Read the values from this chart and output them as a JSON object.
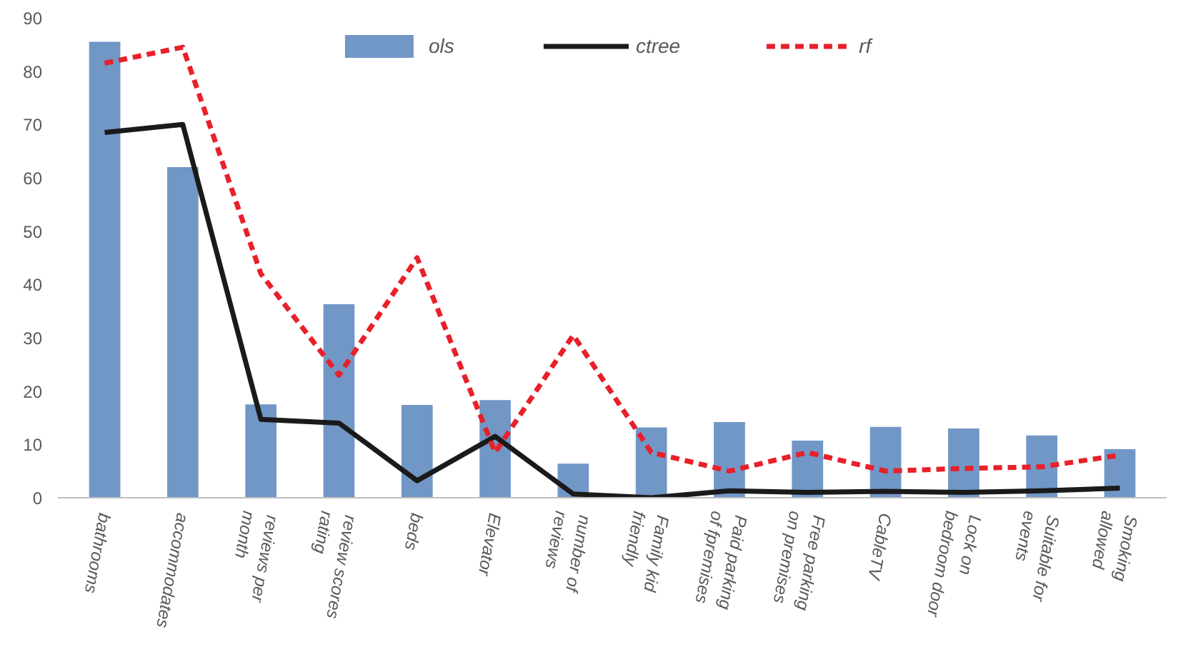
{
  "chart_data": {
    "type": "bar",
    "categories": [
      "bathrooms",
      "accommodates",
      "reviews per month",
      "review scores rating",
      "beds",
      "Elevator",
      "number of reviews",
      "Family kid friendly",
      "Paid parking of fpremises",
      "Free parking on premises",
      "CableTV",
      "Lock on bedroom door",
      "Suitable for events",
      "Smoking allowed"
    ],
    "series": [
      {
        "name": "ols",
        "color": "#7197c6",
        "values": [
          85.5,
          62,
          17.5,
          36.3,
          17.4,
          18.3,
          6.4,
          13.2,
          14.2,
          10.7,
          13.3,
          13,
          11.7,
          9.1
        ]
      },
      {
        "name": "ctree",
        "type": "line",
        "color": "#1a1a1a",
        "line_style": "solid",
        "values": [
          68.5,
          70,
          14.7,
          14,
          3.2,
          11.5,
          0.7,
          0,
          1.3,
          1,
          1.2,
          1,
          1.3,
          1.8
        ]
      },
      {
        "name": "rf",
        "type": "line",
        "color": "#e8202a",
        "line_style": "dashed",
        "values": [
          81.5,
          84.5,
          42,
          23,
          45,
          8.5,
          30.5,
          8.5,
          5,
          8.5,
          5,
          5.5,
          5.8,
          8
        ]
      }
    ],
    "ylim": [
      0,
      90
    ],
    "yticks": [
      0,
      10,
      20,
      30,
      40,
      50,
      60,
      70,
      80,
      90
    ],
    "grid": false,
    "legend": "top",
    "marker": "none"
  }
}
